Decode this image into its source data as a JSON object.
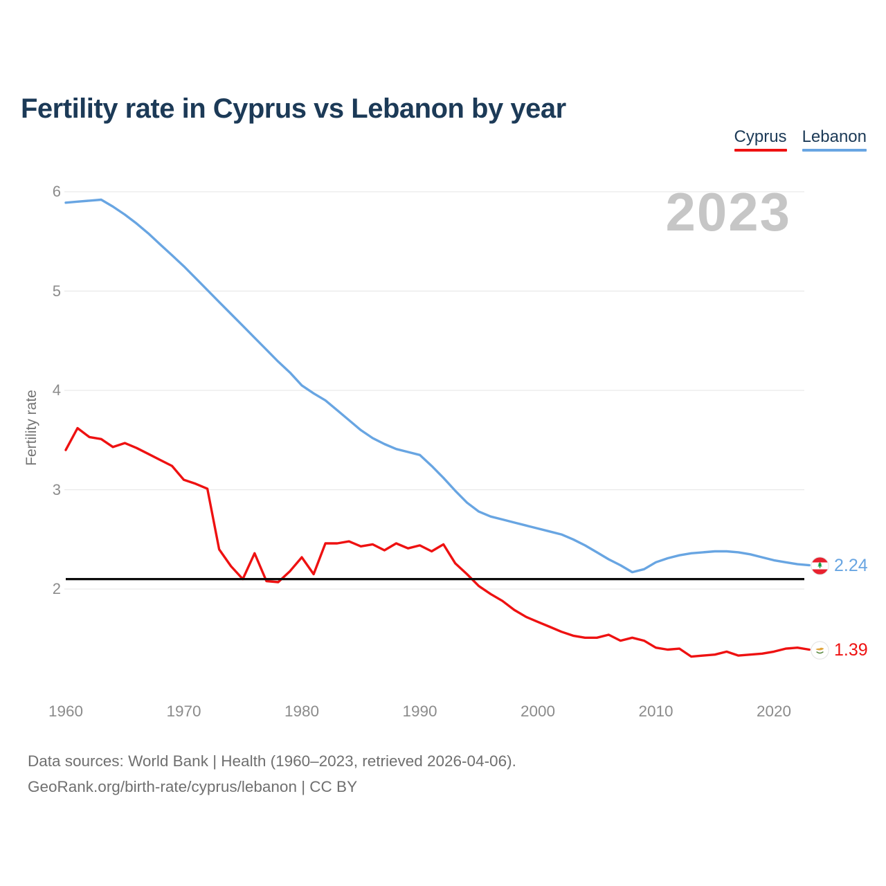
{
  "title": "Fertility rate in Cyprus vs Lebanon by year",
  "watermark_year": "2023",
  "legend": {
    "items": [
      {
        "label": "Cyprus",
        "color": "#ee1111"
      },
      {
        "label": "Lebanon",
        "color": "#68a5e2"
      }
    ]
  },
  "end_labels": {
    "lebanon": {
      "value": "2.24",
      "color": "#68a5e2",
      "flag": "lebanon-flag-icon"
    },
    "cyprus": {
      "value": "1.39",
      "color": "#ee1111",
      "flag": "cyprus-flag-icon"
    }
  },
  "footer": {
    "line1": "Data sources: World Bank | Health (1960–2023, retrieved 2026-04-06).",
    "line2": "GeoRank.org/birth-rate/cyprus/lebanon | CC BY"
  },
  "chart_data": {
    "type": "line",
    "title": "Fertility rate in Cyprus vs Lebanon by year",
    "xlabel": "",
    "ylabel": "Fertility rate",
    "xlim": [
      1960,
      2023
    ],
    "ylim": [
      1.2,
      6.1
    ],
    "yticks": [
      2,
      3,
      4,
      5,
      6
    ],
    "xticks": [
      1960,
      1970,
      1980,
      1990,
      2000,
      2010,
      2020
    ],
    "grid": "horizontal",
    "legend_position": "top-right",
    "reference_line": {
      "value": 2.1,
      "color": "#0a0a0a"
    },
    "x": [
      1960,
      1961,
      1962,
      1963,
      1964,
      1965,
      1966,
      1967,
      1968,
      1969,
      1970,
      1971,
      1972,
      1973,
      1974,
      1975,
      1976,
      1977,
      1978,
      1979,
      1980,
      1981,
      1982,
      1983,
      1984,
      1985,
      1986,
      1987,
      1988,
      1989,
      1990,
      1991,
      1992,
      1993,
      1994,
      1995,
      1996,
      1997,
      1998,
      1999,
      2000,
      2001,
      2002,
      2003,
      2004,
      2005,
      2006,
      2007,
      2008,
      2009,
      2010,
      2011,
      2012,
      2013,
      2014,
      2015,
      2016,
      2017,
      2018,
      2019,
      2020,
      2021,
      2022,
      2023
    ],
    "series": [
      {
        "name": "Lebanon",
        "color": "#68a5e2",
        "end_value": 2.24,
        "values": [
          5.89,
          5.9,
          5.91,
          5.92,
          5.85,
          5.77,
          5.68,
          5.58,
          5.47,
          5.36,
          5.25,
          5.13,
          5.01,
          4.89,
          4.77,
          4.65,
          4.53,
          4.41,
          4.29,
          4.18,
          4.05,
          3.97,
          3.9,
          3.8,
          3.7,
          3.6,
          3.52,
          3.46,
          3.41,
          3.38,
          3.35,
          3.24,
          3.12,
          2.99,
          2.87,
          2.78,
          2.73,
          2.7,
          2.67,
          2.64,
          2.61,
          2.58,
          2.55,
          2.5,
          2.44,
          2.37,
          2.3,
          2.24,
          2.17,
          2.2,
          2.27,
          2.31,
          2.34,
          2.36,
          2.37,
          2.38,
          2.38,
          2.37,
          2.35,
          2.32,
          2.29,
          2.27,
          2.25,
          2.24
        ]
      },
      {
        "name": "Cyprus",
        "color": "#ee1111",
        "end_value": 1.39,
        "values": [
          3.4,
          3.62,
          3.53,
          3.51,
          3.43,
          3.47,
          3.42,
          3.36,
          3.3,
          3.24,
          3.1,
          3.06,
          3.01,
          2.4,
          2.23,
          2.1,
          2.36,
          2.08,
          2.07,
          2.18,
          2.32,
          2.15,
          2.46,
          2.46,
          2.48,
          2.43,
          2.45,
          2.39,
          2.46,
          2.41,
          2.44,
          2.38,
          2.45,
          2.26,
          2.15,
          2.03,
          1.95,
          1.88,
          1.79,
          1.72,
          1.67,
          1.62,
          1.57,
          1.53,
          1.51,
          1.51,
          1.54,
          1.48,
          1.51,
          1.48,
          1.41,
          1.39,
          1.4,
          1.32,
          1.33,
          1.34,
          1.37,
          1.33,
          1.34,
          1.35,
          1.37,
          1.4,
          1.41,
          1.39
        ]
      }
    ]
  }
}
